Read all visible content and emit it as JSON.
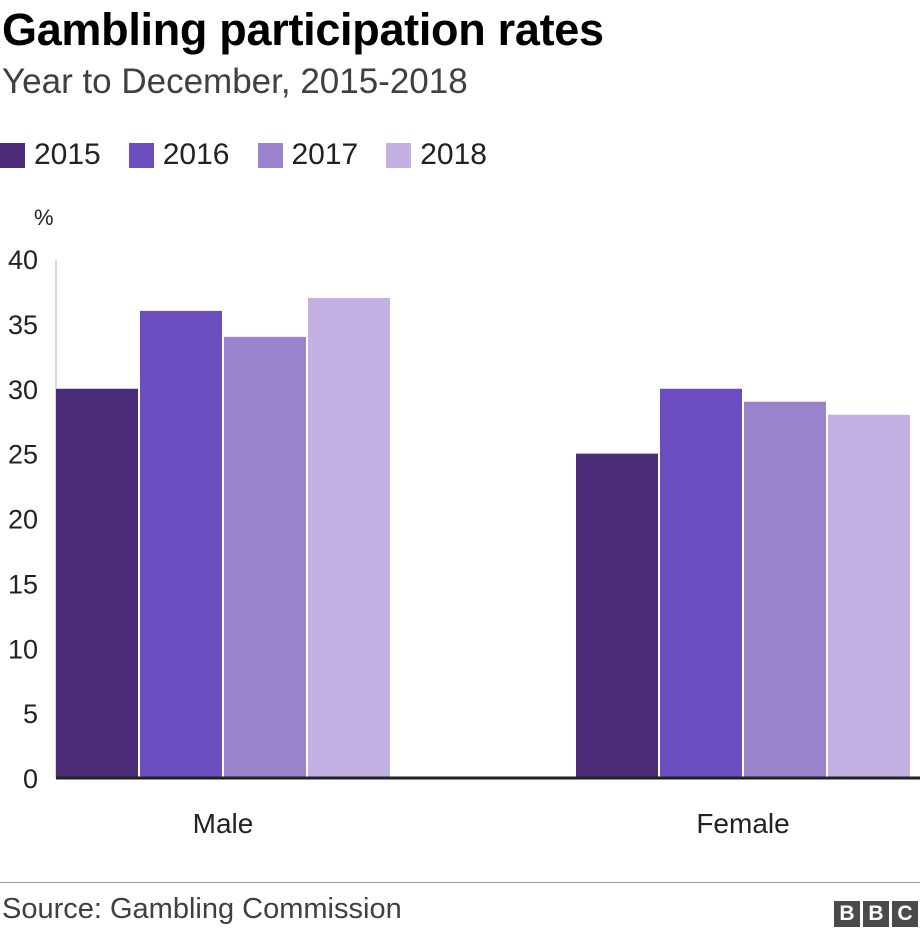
{
  "chart_data": {
    "type": "bar",
    "title": "Gambling participation rates",
    "subtitle": "Year to December, 2015-2018",
    "ylabel": "%",
    "ylim": [
      0,
      40
    ],
    "yticks": [
      "0",
      "5",
      "10",
      "15",
      "20",
      "25",
      "30",
      "35",
      "40"
    ],
    "categories": [
      "Male",
      "Female"
    ],
    "series": [
      {
        "name": "2015",
        "color": "#4b2c78",
        "values": [
          30,
          25
        ]
      },
      {
        "name": "2016",
        "color": "#6c4dbf",
        "values": [
          36,
          30
        ]
      },
      {
        "name": "2017",
        "color": "#9b82cd",
        "values": [
          34,
          29
        ]
      },
      {
        "name": "2018",
        "color": "#c3b1e3",
        "values": [
          37,
          28
        ]
      }
    ],
    "legend_position": "top-left",
    "grid": false
  },
  "footer": {
    "source": "Source: Gambling Commission",
    "logo_letters": [
      "B",
      "B",
      "C"
    ]
  }
}
